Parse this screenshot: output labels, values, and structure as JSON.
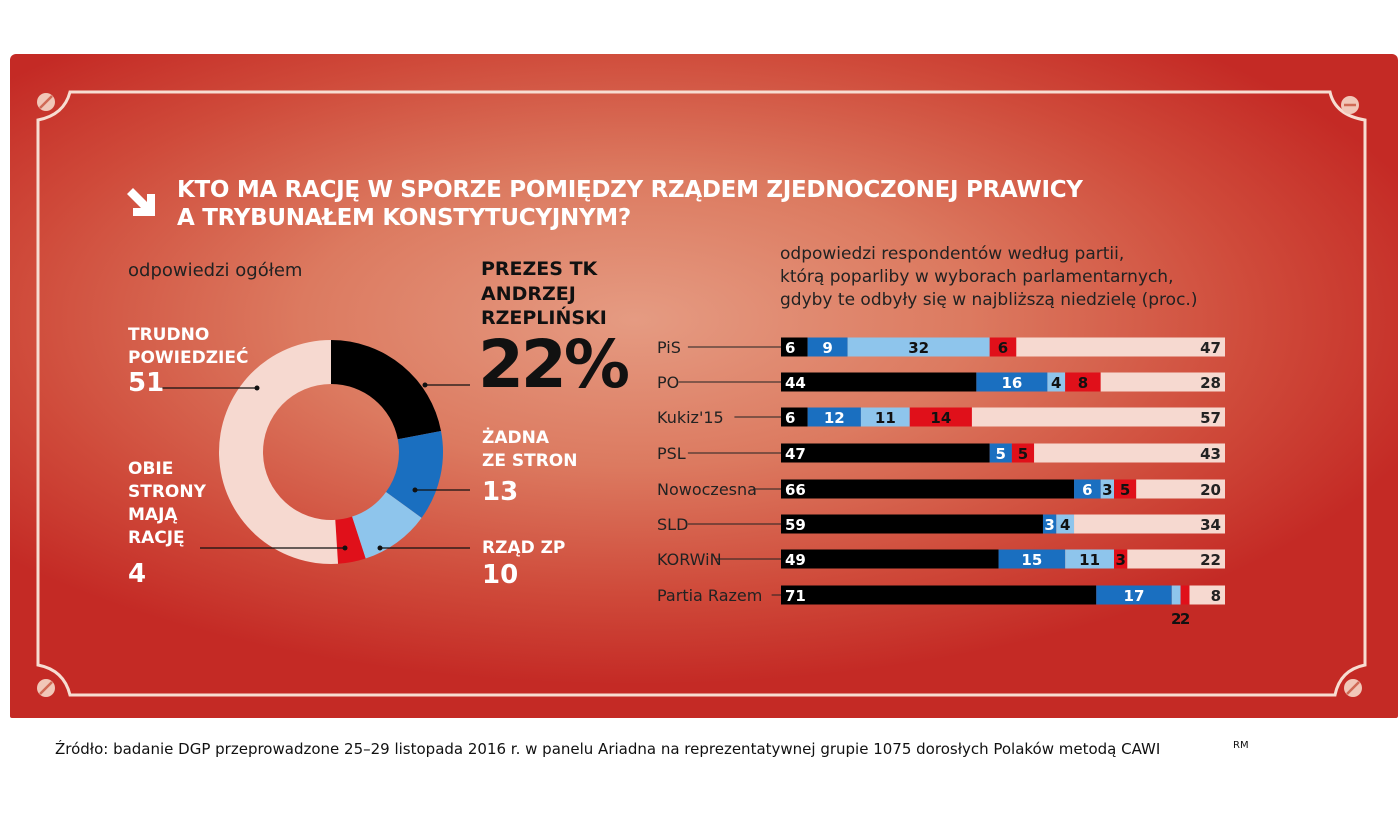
{
  "title_line1": "KTO MA RACJĘ W SPORZE POMIĘDZY RZĄDEM ZJEDNOCZONEJ PRAWICY",
  "title_line2": "A TRYBUNAŁEM KONSTYTUCYJNYM?",
  "source": "Źródło: badanie DGP przeprowadzone 25–29 listopada 2016 r. w panelu Ariadna na reprezentatywnej grupie 1075 dorosłych Polaków metodą CAWI",
  "author": "RM",
  "colors": {
    "prezes": "#000000",
    "zadna": "#1a6fc0",
    "rzad": "#8ec5ec",
    "obie": "#e0101a",
    "trudno": "#f6d9d0"
  },
  "chart_data": [
    {
      "type": "pie",
      "title": "odpowiedzi ogółem",
      "donut": true,
      "slices": [
        {
          "name_lines": [
            "PREZES TK",
            "ANDRZEJ",
            "RZEPLIŃSKI"
          ],
          "value": 22,
          "label": "22%"
        },
        {
          "name_lines": [
            "ŻADNA",
            "ZE STRON"
          ],
          "value": 13,
          "label": "13"
        },
        {
          "name_lines": [
            "RZĄD ZP"
          ],
          "value": 10,
          "label": "10"
        },
        {
          "name_lines": [
            "OBIE",
            "STRONY",
            "MAJĄ",
            "RACJĘ"
          ],
          "value": 4,
          "label": "4"
        },
        {
          "name_lines": [
            "TRUDNO",
            "POWIEDZIEĆ"
          ],
          "value": 51,
          "label": "51"
        }
      ]
    },
    {
      "type": "bar",
      "stacked": true,
      "orientation": "horizontal",
      "title_lines": [
        "odpowiedzi respondentów według partii,",
        "którą poparliby w wyborach parlamentarnych,",
        "gdyby te odbyły się w najbliższą niedzielę (proc.)"
      ],
      "xlim": [
        0,
        100
      ],
      "categories": [
        "PiS",
        "PO",
        "Kukiz'15",
        "PSL",
        "Nowoczesna",
        "SLD",
        "KORWiN",
        "Partia Razem"
      ],
      "series": [
        {
          "key": "prezes",
          "values": [
            6,
            44,
            6,
            47,
            66,
            59,
            49,
            71
          ]
        },
        {
          "key": "zadna",
          "values": [
            9,
            16,
            12,
            5,
            6,
            3,
            15,
            17
          ]
        },
        {
          "key": "rzad",
          "values": [
            32,
            4,
            11,
            0,
            3,
            4,
            11,
            2
          ]
        },
        {
          "key": "obie",
          "values": [
            6,
            8,
            14,
            5,
            5,
            0,
            3,
            2
          ]
        },
        {
          "key": "trudno",
          "values": [
            47,
            28,
            57,
            43,
            20,
            34,
            22,
            8
          ]
        }
      ]
    }
  ]
}
